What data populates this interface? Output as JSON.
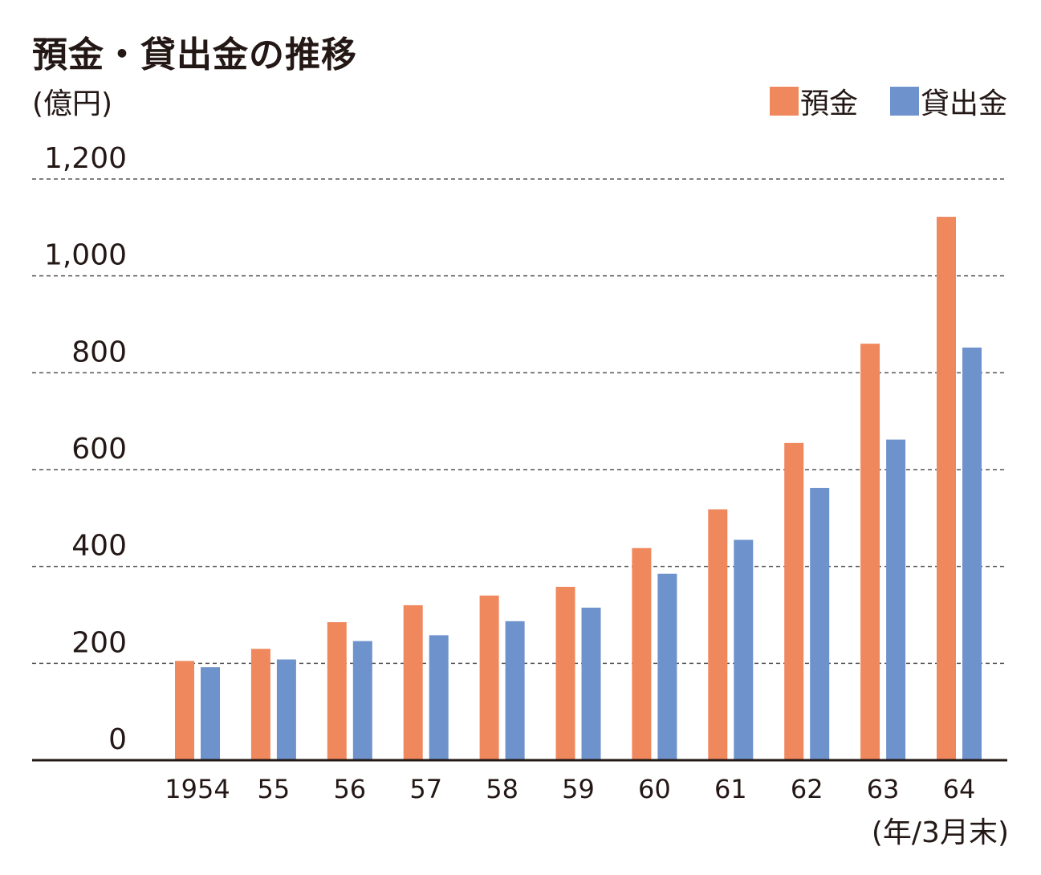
{
  "title": "預金・貸出金の推移",
  "unit_label": "(億円)",
  "x_unit_label": "(年/3月末)",
  "legend": [
    {
      "label": "預金",
      "color": "#F0885E"
    },
    {
      "label": "貸出金",
      "color": "#6E93CC"
    }
  ],
  "chart_data": {
    "type": "bar",
    "title": "預金・貸出金の推移",
    "ylabel": "(億円)",
    "xlabel": "(年/3月末)",
    "categories": [
      "1954",
      "55",
      "56",
      "57",
      "58",
      "59",
      "60",
      "61",
      "62",
      "63",
      "64"
    ],
    "series": [
      {
        "name": "預金",
        "color": "#F0885E",
        "values": [
          205,
          230,
          285,
          320,
          340,
          358,
          438,
          518,
          655,
          860,
          1122
        ]
      },
      {
        "name": "貸出金",
        "color": "#6E93CC",
        "values": [
          192,
          208,
          246,
          258,
          287,
          315,
          385,
          455,
          562,
          662,
          852
        ]
      }
    ],
    "yticks": [
      "0",
      "200",
      "400",
      "600",
      "800",
      "1,000",
      "1,200"
    ],
    "ylim": [
      0,
      1200
    ],
    "grid": true,
    "legend_position": "top-right"
  }
}
